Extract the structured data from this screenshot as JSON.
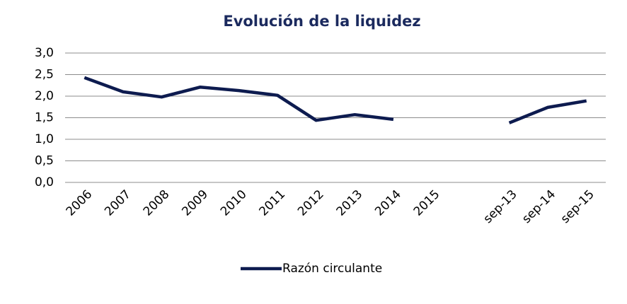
{
  "chart_data": {
    "type": "line",
    "title": "Evolución de la liquidez",
    "categories": [
      "2006",
      "2007",
      "2008",
      "2009",
      "2010",
      "2011",
      "2012",
      "2013",
      "2014",
      "2015",
      null,
      "sep-13",
      "sep-14",
      "sep-15"
    ],
    "series": [
      {
        "name": "Razón circulante",
        "color": "#0d1b4f",
        "values": [
          2.43,
          2.1,
          1.98,
          2.21,
          2.13,
          2.02,
          1.44,
          1.57,
          1.46,
          null,
          null,
          1.38,
          1.74,
          1.89
        ]
      }
    ],
    "ylim": [
      0,
      3
    ],
    "yticks": [
      {
        "value": 0,
        "label": "0,0"
      },
      {
        "value": 0.5,
        "label": "0,5"
      },
      {
        "value": 1,
        "label": "1,0"
      },
      {
        "value": 1.5,
        "label": "1,5"
      },
      {
        "value": 2,
        "label": "2,0"
      },
      {
        "value": 2.5,
        "label": "2,5"
      },
      {
        "value": 3,
        "label": "3,0"
      }
    ],
    "grid": true,
    "legend": "bottom"
  }
}
